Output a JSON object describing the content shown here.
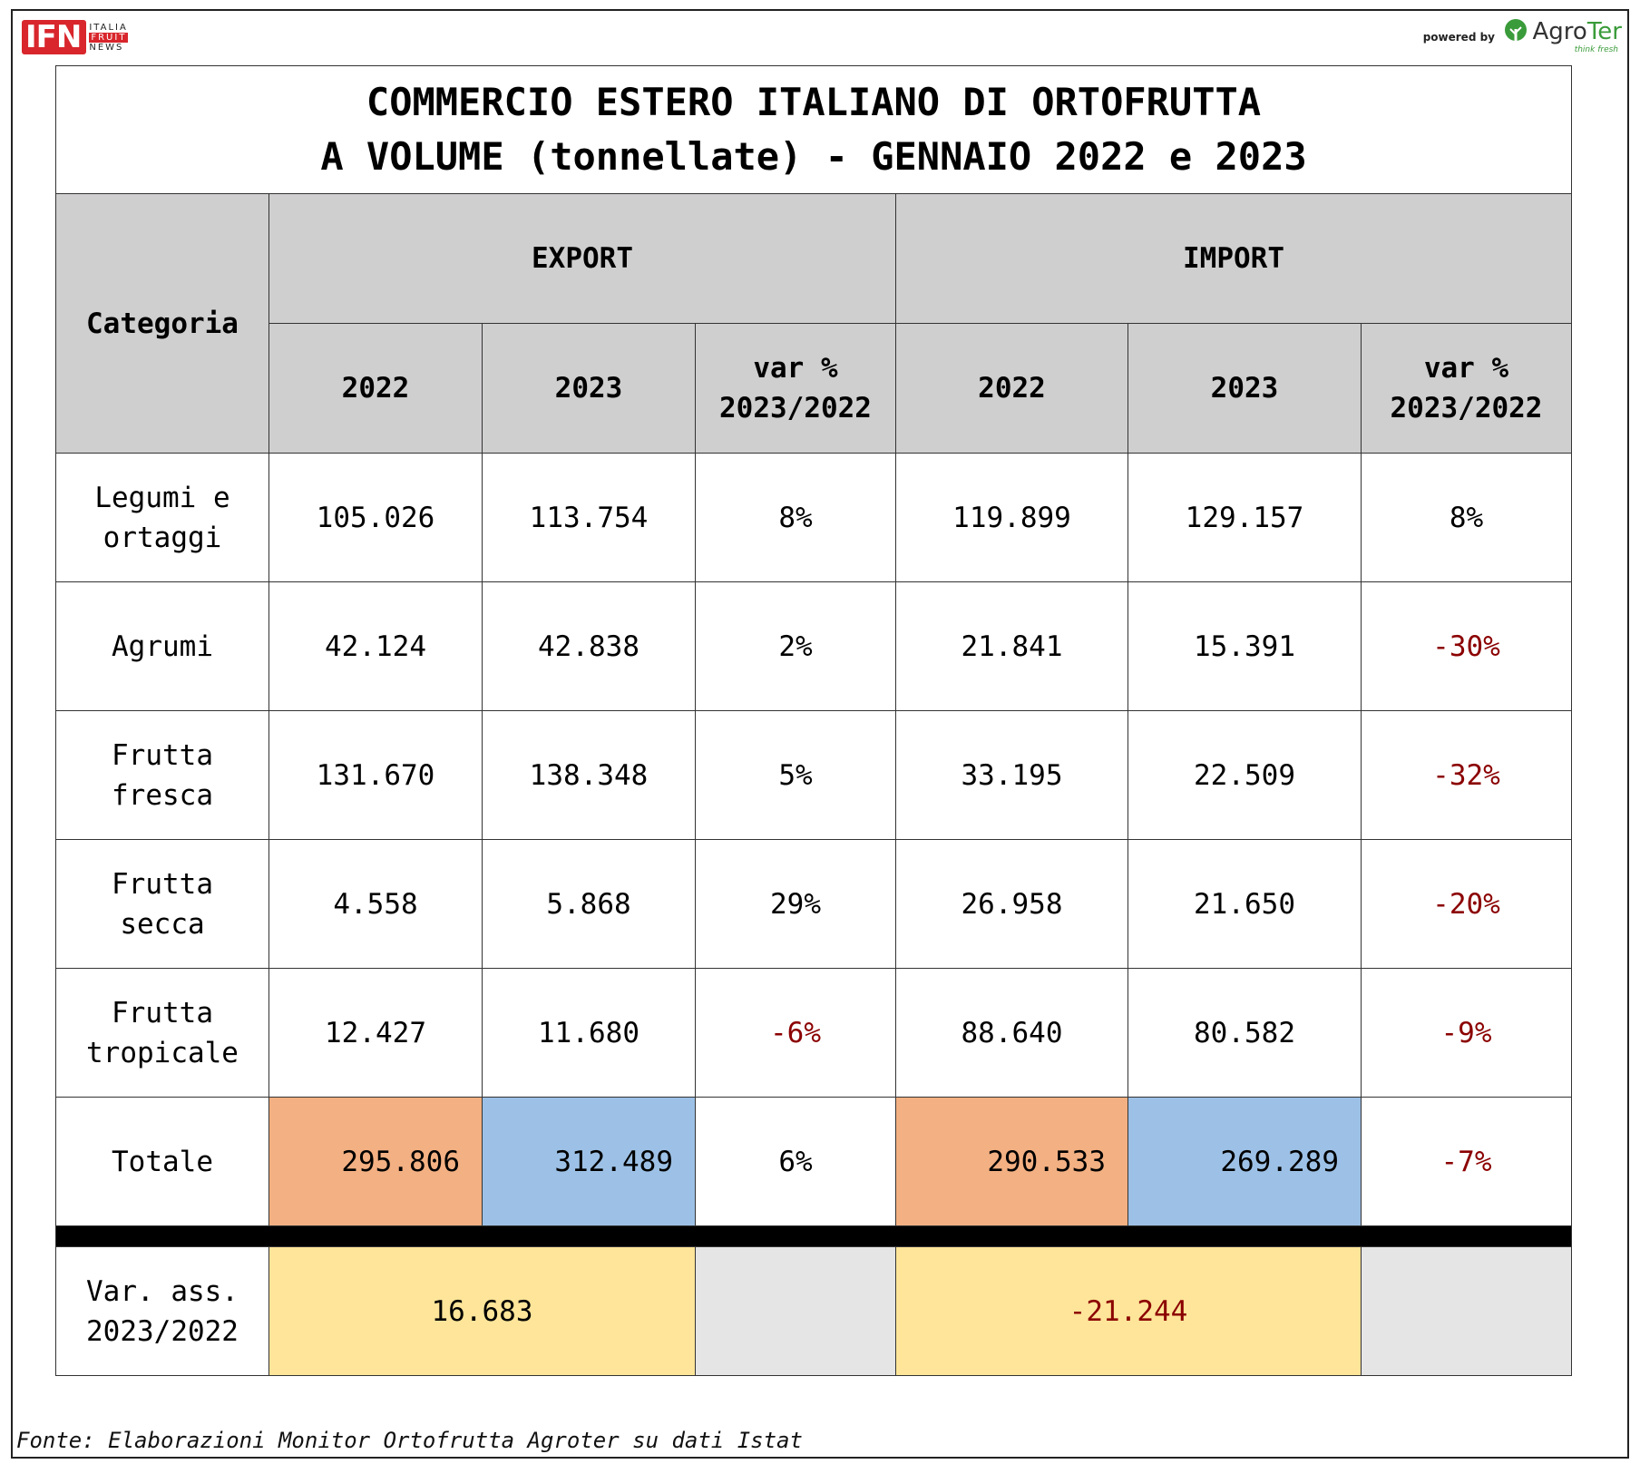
{
  "header": {
    "ifn_logo": "IFN",
    "ifn_side": [
      "ITALIA",
      "FRUIT",
      "NEWS"
    ],
    "powered_by": "powered by",
    "agroter_name_a": "Agro",
    "agroter_name_b": "Ter",
    "agroter_tag": "think fresh"
  },
  "title": {
    "line1": "COMMERCIO ESTERO ITALIANO DI ORTOFRUTTA",
    "line2": "A VOLUME (tonnellate) - GENNAIO 2022 e 2023"
  },
  "columns": {
    "category": "Categoria",
    "export": "EXPORT",
    "import": "IMPORT",
    "y2022": "2022",
    "y2023": "2023",
    "var_line1": "var %",
    "var_line2": "2023/2022"
  },
  "rows": [
    {
      "cat1": "Legumi e",
      "cat2": "ortaggi",
      "exp2022": "105.026",
      "exp2023": "113.754",
      "expvar": "8%",
      "imp2022": "119.899",
      "imp2023": "129.157",
      "impvar": "8%"
    },
    {
      "cat1": "Agrumi",
      "cat2": "",
      "exp2022": "42.124",
      "exp2023": "42.838",
      "expvar": "2%",
      "imp2022": "21.841",
      "imp2023": "15.391",
      "impvar": "-30%"
    },
    {
      "cat1": "Frutta",
      "cat2": "fresca",
      "exp2022": "131.670",
      "exp2023": "138.348",
      "expvar": "5%",
      "imp2022": "33.195",
      "imp2023": "22.509",
      "impvar": "-32%"
    },
    {
      "cat1": "Frutta",
      "cat2": "secca",
      "exp2022": "4.558",
      "exp2023": "5.868",
      "expvar": "29%",
      "imp2022": "26.958",
      "imp2023": "21.650",
      "impvar": "-20%"
    },
    {
      "cat1": "Frutta",
      "cat2": "tropicale",
      "exp2022": "12.427",
      "exp2023": "11.680",
      "expvar": "-6%",
      "imp2022": "88.640",
      "imp2023": "80.582",
      "impvar": "-9%"
    }
  ],
  "total": {
    "label": "Totale",
    "exp2022": "295.806",
    "exp2023": "312.489",
    "expvar": "6%",
    "imp2022": "290.533",
    "imp2023": "269.289",
    "impvar": "-7%"
  },
  "var_ass": {
    "label1": "Var. ass.",
    "label2": "2023/2022",
    "export": "16.683",
    "import": "-21.244"
  },
  "colors": {
    "header_bg": "#d0cfd0",
    "total_2022": "#f3b082",
    "total_2023": "#9dc1e6",
    "var_ass_bg": "#fee599",
    "negative": "#8b0000"
  },
  "source": "Fonte: Elaborazioni Monitor Ortofrutta Agroter su dati Istat"
}
